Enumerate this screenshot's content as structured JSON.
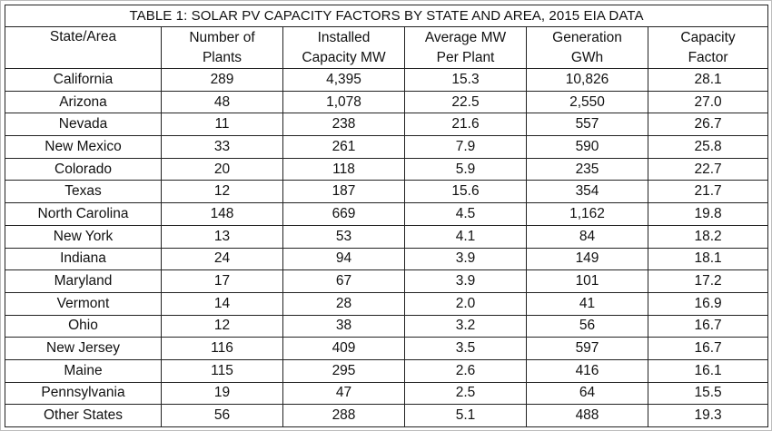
{
  "table": {
    "title": "TABLE 1: SOLAR PV CAPACITY FACTORS BY STATE AND AREA, 2015 EIA DATA",
    "headers": [
      {
        "line1": "State/Area",
        "line2": ""
      },
      {
        "line1": "Number of",
        "line2": "Plants"
      },
      {
        "line1": "Installed",
        "line2": "Capacity MW"
      },
      {
        "line1": "Average MW",
        "line2": "Per Plant"
      },
      {
        "line1": "Generation",
        "line2": "GWh"
      },
      {
        "line1": "Capacity",
        "line2": "Factor"
      }
    ],
    "rows": [
      [
        "California",
        "289",
        "4,395",
        "15.3",
        "10,826",
        "28.1"
      ],
      [
        "Arizona",
        "48",
        "1,078",
        "22.5",
        "2,550",
        "27.0"
      ],
      [
        "Nevada",
        "11",
        "238",
        "21.6",
        "557",
        "26.7"
      ],
      [
        "New Mexico",
        "33",
        "261",
        "7.9",
        "590",
        "25.8"
      ],
      [
        "Colorado",
        "20",
        "118",
        "5.9",
        "235",
        "22.7"
      ],
      [
        "Texas",
        "12",
        "187",
        "15.6",
        "354",
        "21.7"
      ],
      [
        "North Carolina",
        "148",
        "669",
        "4.5",
        "1,162",
        "19.8"
      ],
      [
        "New York",
        "13",
        "53",
        "4.1",
        "84",
        "18.2"
      ],
      [
        "Indiana",
        "24",
        "94",
        "3.9",
        "149",
        "18.1"
      ],
      [
        "Maryland",
        "17",
        "67",
        "3.9",
        "101",
        "17.2"
      ],
      [
        "Vermont",
        "14",
        "28",
        "2.0",
        "41",
        "16.9"
      ],
      [
        "Ohio",
        "12",
        "38",
        "3.2",
        "56",
        "16.7"
      ],
      [
        "New Jersey",
        "116",
        "409",
        "3.5",
        "597",
        "16.7"
      ],
      [
        "Maine",
        "115",
        "295",
        "2.6",
        "416",
        "16.1"
      ],
      [
        "Pennsylvania",
        "19",
        "47",
        "2.5",
        "64",
        "15.5"
      ],
      [
        "Other States",
        "56",
        "288",
        "5.1",
        "488",
        "19.3"
      ]
    ]
  }
}
